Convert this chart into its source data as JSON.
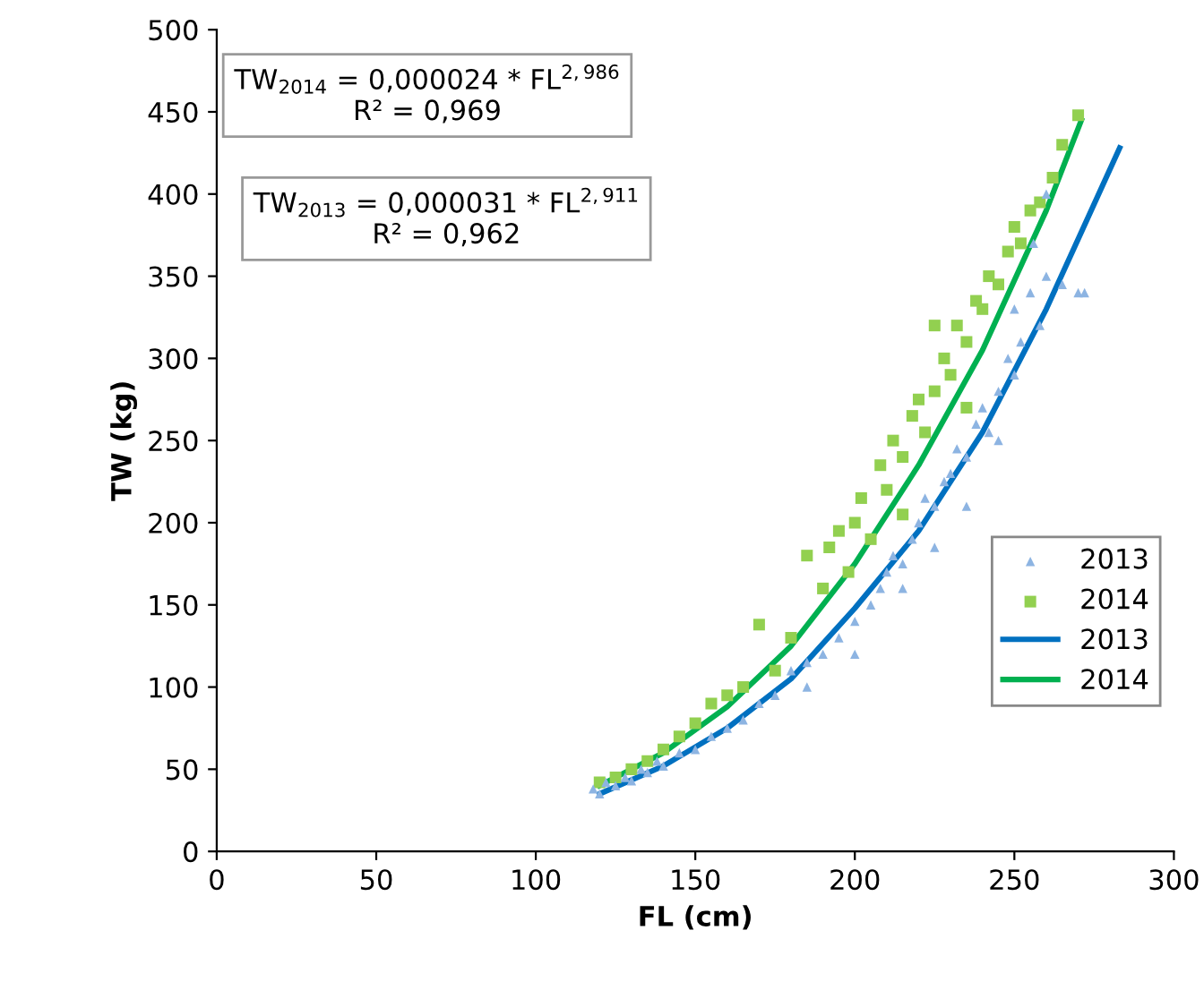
{
  "chart_data": {
    "type": "scatter",
    "xlabel": "FL (cm)",
    "ylabel": "TW (kg)",
    "xlim": [
      0,
      300
    ],
    "xticks": [
      0,
      50,
      100,
      150,
      200,
      250,
      300
    ],
    "ylim": [
      0,
      500
    ],
    "yticks": [
      0,
      50,
      100,
      150,
      200,
      250,
      300,
      350,
      400,
      450,
      500
    ],
    "grid": false,
    "legend": "right",
    "annotations": [
      "TW$_{2014}$ = 0,000024 * FL$^{2,986}$\nR² = 0,969",
      "TW$_{2013}$ = 0,000031 * FL$^{2,911}$\nR² = 0,962"
    ],
    "series": [
      {
        "name": "2013",
        "marker": "triangle",
        "color": "#8db4e2",
        "x": [
          118,
          120,
          122,
          125,
          128,
          130,
          133,
          135,
          138,
          140,
          145,
          150,
          155,
          160,
          165,
          170,
          175,
          180,
          185,
          190,
          195,
          200,
          205,
          208,
          210,
          212,
          215,
          218,
          220,
          222,
          225,
          228,
          230,
          232,
          235,
          238,
          240,
          242,
          245,
          248,
          250,
          252,
          255,
          258,
          260,
          265,
          270,
          272,
          256,
          250,
          235,
          215,
          200,
          185,
          260,
          245,
          225
        ],
        "values": [
          38,
          35,
          42,
          40,
          45,
          43,
          50,
          48,
          55,
          52,
          60,
          62,
          70,
          75,
          80,
          90,
          95,
          110,
          115,
          120,
          130,
          140,
          150,
          160,
          170,
          180,
          175,
          190,
          200,
          215,
          210,
          225,
          230,
          245,
          240,
          260,
          270,
          255,
          280,
          300,
          290,
          310,
          340,
          320,
          350,
          345,
          340,
          340,
          370,
          330,
          210,
          160,
          120,
          100,
          400,
          250,
          185
        ]
      },
      {
        "name": "2014",
        "marker": "square",
        "color": "#92d050",
        "x": [
          120,
          125,
          130,
          135,
          140,
          145,
          150,
          155,
          160,
          165,
          170,
          175,
          180,
          185,
          190,
          192,
          195,
          198,
          200,
          202,
          205,
          208,
          210,
          212,
          215,
          218,
          220,
          222,
          225,
          228,
          230,
          232,
          235,
          238,
          240,
          242,
          245,
          248,
          250,
          252,
          255,
          258,
          262,
          265,
          270,
          225,
          215,
          235
        ],
        "values": [
          42,
          45,
          50,
          55,
          62,
          70,
          78,
          90,
          95,
          100,
          138,
          110,
          130,
          180,
          160,
          185,
          195,
          170,
          200,
          215,
          190,
          235,
          220,
          250,
          240,
          265,
          275,
          255,
          280,
          300,
          290,
          320,
          310,
          335,
          330,
          350,
          345,
          365,
          380,
          370,
          390,
          395,
          410,
          430,
          448,
          320,
          205,
          270
        ]
      },
      {
        "name": "2013",
        "type": "line",
        "marker": "none",
        "line_style": "solid",
        "color": "#0070c0",
        "x": [
          120,
          140,
          160,
          180,
          200,
          220,
          240,
          260,
          283
        ],
        "values": [
          35,
          52,
          75,
          105,
          148,
          195,
          255,
          330,
          428
        ]
      },
      {
        "name": "2014",
        "type": "line",
        "marker": "none",
        "line_style": "solid",
        "color": "#00b050",
        "x": [
          120,
          140,
          160,
          180,
          200,
          220,
          240,
          260,
          271
        ],
        "values": [
          40,
          60,
          88,
          125,
          175,
          235,
          305,
          390,
          445
        ]
      }
    ]
  }
}
